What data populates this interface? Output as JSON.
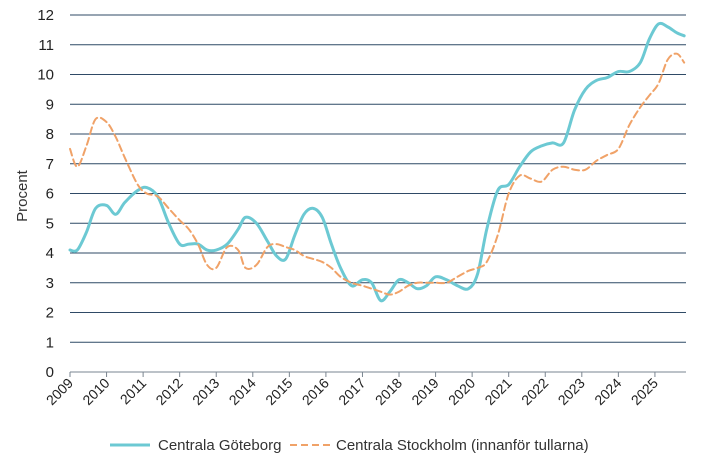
{
  "chart_data": {
    "type": "line",
    "title": "",
    "xlabel": "",
    "ylabel": "Procent",
    "ylim": [
      0,
      12
    ],
    "yticks": [
      "0",
      "1",
      "2",
      "3",
      "4",
      "5",
      "6",
      "7",
      "8",
      "9",
      "10",
      "11",
      "12"
    ],
    "xlim": [
      2009,
      2025.85
    ],
    "xticks": [
      "2009",
      "2010",
      "2011",
      "2012",
      "2013",
      "2014",
      "2015",
      "2016",
      "2017",
      "2018",
      "2019",
      "2020",
      "2021",
      "2022",
      "2023",
      "2024",
      "2025"
    ],
    "grid": "horizontal",
    "legend_position": "bottom",
    "series": [
      {
        "name": "Centrala Göteborg",
        "color": "#6CC9D3",
        "style": "solid",
        "x": [
          2009.0,
          2009.2,
          2009.45,
          2009.7,
          2010.0,
          2010.25,
          2010.5,
          2010.85,
          2011.1,
          2011.4,
          2011.7,
          2012.0,
          2012.25,
          2012.5,
          2012.75,
          2013.0,
          2013.3,
          2013.6,
          2013.8,
          2014.1,
          2014.4,
          2014.65,
          2014.9,
          2015.15,
          2015.4,
          2015.65,
          2015.9,
          2016.15,
          2016.4,
          2016.7,
          2017.0,
          2017.25,
          2017.5,
          2017.75,
          2018.0,
          2018.25,
          2018.5,
          2018.75,
          2019.0,
          2019.3,
          2019.6,
          2019.9,
          2020.15,
          2020.4,
          2020.7,
          2021.0,
          2021.3,
          2021.6,
          2021.9,
          2022.2,
          2022.5,
          2022.8,
          2023.1,
          2023.4,
          2023.7,
          2024.0,
          2024.3,
          2024.6,
          2024.85,
          2025.1,
          2025.35,
          2025.6,
          2025.8
        ],
        "values": [
          4.1,
          4.1,
          4.7,
          5.5,
          5.6,
          5.3,
          5.7,
          6.1,
          6.2,
          5.9,
          5.0,
          4.3,
          4.3,
          4.3,
          4.1,
          4.1,
          4.3,
          4.8,
          5.2,
          5.0,
          4.4,
          3.9,
          3.8,
          4.6,
          5.3,
          5.5,
          5.2,
          4.3,
          3.5,
          2.9,
          3.1,
          3.0,
          2.4,
          2.7,
          3.1,
          3.0,
          2.8,
          2.9,
          3.2,
          3.1,
          2.9,
          2.8,
          3.3,
          4.8,
          6.1,
          6.3,
          6.9,
          7.4,
          7.6,
          7.7,
          7.7,
          8.8,
          9.5,
          9.8,
          9.9,
          10.1,
          10.1,
          10.4,
          11.2,
          11.7,
          11.6,
          11.4,
          11.3
        ],
        "label": "Centrala Göteborg"
      },
      {
        "name": "Centrala Stockholm (innanför tullarna)",
        "color": "#F0A268",
        "style": "dashed",
        "x": [
          2009.0,
          2009.2,
          2009.45,
          2009.7,
          2010.0,
          2010.25,
          2010.5,
          2010.85,
          2011.1,
          2011.4,
          2011.7,
          2012.0,
          2012.25,
          2012.5,
          2012.75,
          2013.0,
          2013.3,
          2013.6,
          2013.8,
          2014.1,
          2014.4,
          2014.65,
          2014.9,
          2015.15,
          2015.4,
          2015.65,
          2015.9,
          2016.15,
          2016.4,
          2016.7,
          2017.0,
          2017.25,
          2017.5,
          2017.75,
          2018.0,
          2018.25,
          2018.5,
          2018.75,
          2019.0,
          2019.3,
          2019.6,
          2019.9,
          2020.15,
          2020.4,
          2020.7,
          2021.0,
          2021.3,
          2021.6,
          2021.9,
          2022.2,
          2022.5,
          2022.8,
          2023.1,
          2023.4,
          2023.7,
          2024.0,
          2024.3,
          2024.6,
          2024.85,
          2025.1,
          2025.35,
          2025.6,
          2025.8
        ],
        "values": [
          7.5,
          6.9,
          7.6,
          8.5,
          8.4,
          7.9,
          7.2,
          6.3,
          6.0,
          5.9,
          5.5,
          5.1,
          4.8,
          4.3,
          3.6,
          3.5,
          4.2,
          4.1,
          3.5,
          3.6,
          4.2,
          4.3,
          4.2,
          4.1,
          3.9,
          3.8,
          3.7,
          3.5,
          3.2,
          3.0,
          2.9,
          2.8,
          2.7,
          2.6,
          2.7,
          2.9,
          3.0,
          3.0,
          3.0,
          3.0,
          3.2,
          3.4,
          3.5,
          3.7,
          4.6,
          6.0,
          6.6,
          6.5,
          6.4,
          6.8,
          6.9,
          6.8,
          6.8,
          7.1,
          7.3,
          7.5,
          8.3,
          8.9,
          9.3,
          9.7,
          10.5,
          10.7,
          10.4
        ],
        "label": "Centrala Stockholm (innanför tullarna)"
      }
    ]
  }
}
